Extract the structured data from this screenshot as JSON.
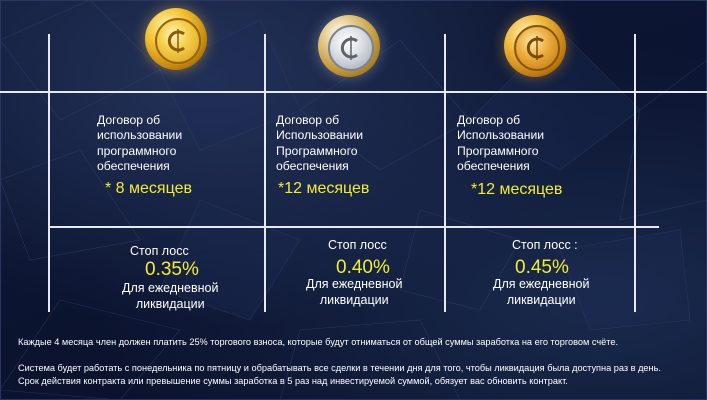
{
  "plans": [
    {
      "coin_icon": "gold-coin-icon",
      "contract_lines": [
        "Договор об",
        "использовании",
        "программного",
        "обеспечения"
      ],
      "duration": "* 8 месяцев",
      "stop_loss_label": "Стоп лосс",
      "stop_loss_percent": "0.35%",
      "liquidation_lines": [
        "Для ежедневной",
        "ликвидации"
      ]
    },
    {
      "coin_icon": "silver-coin-icon",
      "contract_lines": [
        "Договор об",
        "Использовании",
        "Программного",
        "обеспечения"
      ],
      "duration": "*12 месяцев",
      "stop_loss_label": "Стоп лосс",
      "stop_loss_percent": "0.40%",
      "liquidation_lines": [
        "Для ежедневной",
        "ликвидации"
      ]
    },
    {
      "coin_icon": "bronze-coin-icon",
      "contract_lines": [
        "Договор об",
        "Использовании",
        "Программного",
        "обеспечения"
      ],
      "duration": "*12 месяцев",
      "stop_loss_label": "Стоп лосс :",
      "stop_loss_percent": "0.45%",
      "liquidation_lines": [
        "Для ежедневной",
        "ликвидации"
      ]
    }
  ],
  "notes": [
    "Каждые 4 месяца член должен платить 25% торгового взноса, которые будут отниматься от общей суммы заработка на его торговом счёте.",
    "Система будет работать с понедельника по пятницу и обрабатывать все сделки в течении дня для того, чтобы ликвидация была доступна раз в день.",
    "Срок действия контракта или превышение суммы заработка в 5 раз над инвестируемой суммой, обязует вас обновить контракт."
  ],
  "colors": {
    "accent_yellow": "#f3ec35",
    "text": "#ffffff",
    "background": "#0d1532",
    "grid_lines": "#e6e9f0"
  }
}
